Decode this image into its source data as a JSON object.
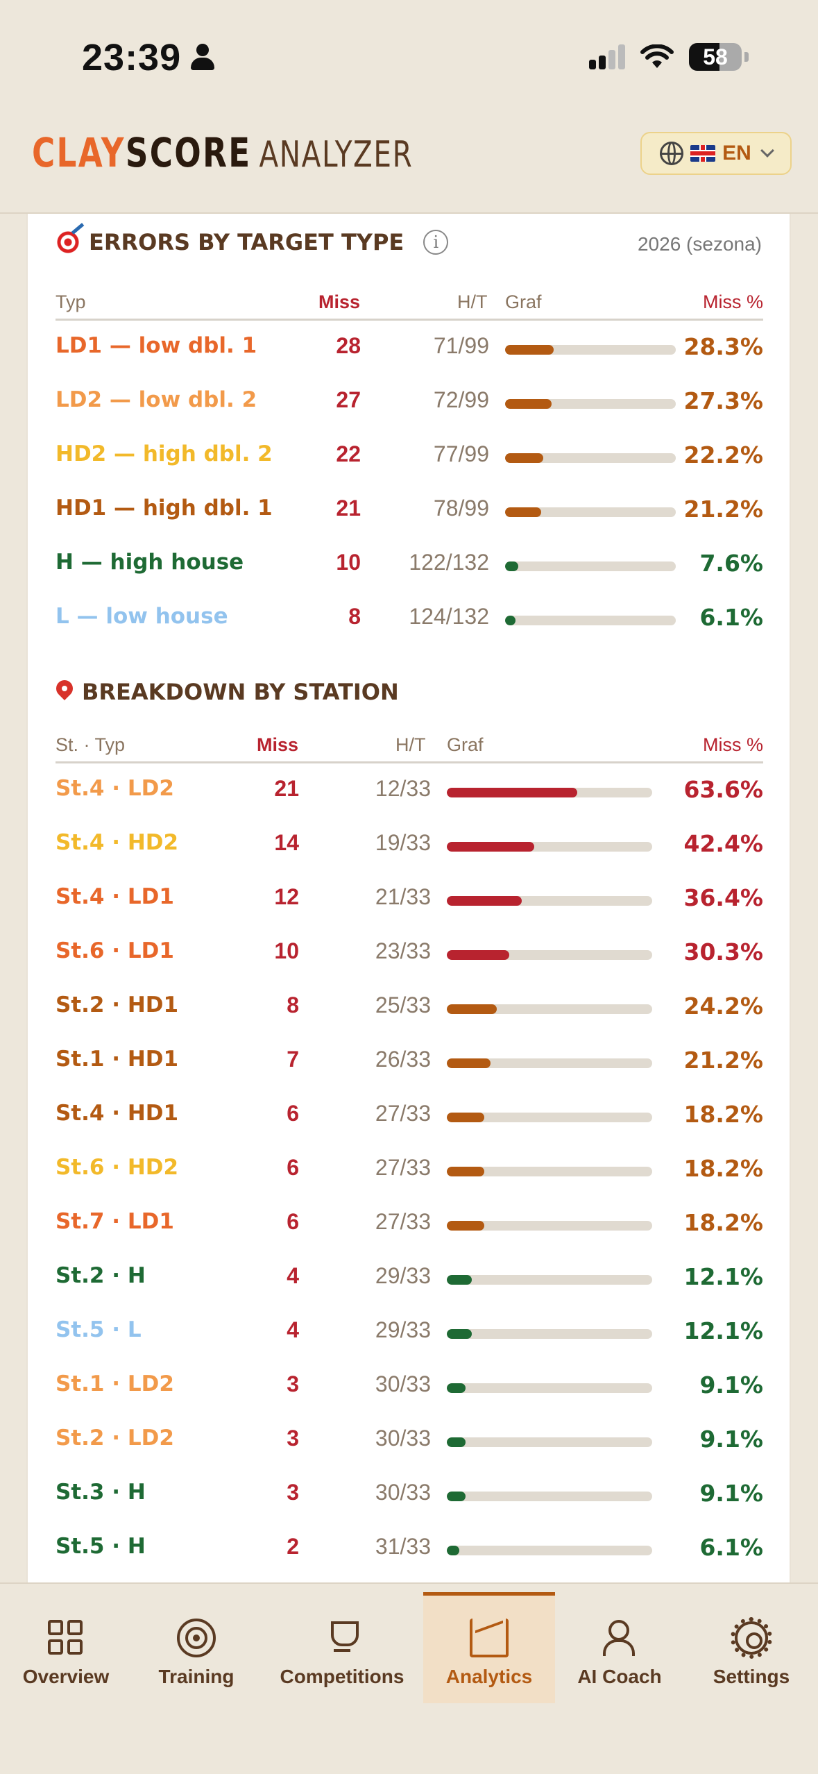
{
  "status": {
    "time": "23:39",
    "battery": "58"
  },
  "header": {
    "logo_clay": "CLAY",
    "logo_score": "SCORE",
    "logo_analyzer": "ANALYZER",
    "lang": "EN"
  },
  "target_section": {
    "title": "ERRORS BY TARGET TYPE",
    "season": "2026 (sezona)",
    "columns": {
      "type": "Typ",
      "miss": "Miss",
      "ht": "H/T",
      "graph": "Graf",
      "miss_pct": "Miss %"
    },
    "rows": [
      {
        "label": "LD1 — low dbl. 1",
        "miss": "28",
        "ht": "71/99",
        "pct": "28.3%",
        "value": 28.3,
        "label_color": "#e8672a",
        "bar_color": "#b35a12",
        "pct_color": "#b35a12"
      },
      {
        "label": "LD2 — low dbl. 2",
        "miss": "27",
        "ht": "72/99",
        "pct": "27.3%",
        "value": 27.3,
        "label_color": "#f29a4a",
        "bar_color": "#b35a12",
        "pct_color": "#b35a12"
      },
      {
        "label": "HD2 — high dbl. 2",
        "miss": "22",
        "ht": "77/99",
        "pct": "22.2%",
        "value": 22.2,
        "label_color": "#f2b92a",
        "bar_color": "#b35a12",
        "pct_color": "#b35a12"
      },
      {
        "label": "HD1 — high dbl. 1",
        "miss": "21",
        "ht": "78/99",
        "pct": "21.2%",
        "value": 21.2,
        "label_color": "#b35a12",
        "bar_color": "#b35a12",
        "pct_color": "#b35a12"
      },
      {
        "label": "H — high house",
        "miss": "10",
        "ht": "122/132",
        "pct": "7.6%",
        "value": 7.6,
        "label_color": "#1e6a34",
        "bar_color": "#1e6a34",
        "pct_color": "#1e6a34"
      },
      {
        "label": "L — low house",
        "miss": "8",
        "ht": "124/132",
        "pct": "6.1%",
        "value": 6.1,
        "label_color": "#92c3ee",
        "bar_color": "#1e6a34",
        "pct_color": "#1e6a34"
      }
    ]
  },
  "station_section": {
    "title": "BREAKDOWN BY STATION",
    "columns": {
      "type": "St. · Typ",
      "miss": "Miss",
      "ht": "H/T",
      "graph": "Graf",
      "miss_pct": "Miss %"
    },
    "rows": [
      {
        "label": "St.4 · LD2",
        "miss": "21",
        "ht": "12/33",
        "pct": "63.6%",
        "value": 63.6,
        "label_color": "#f29a4a",
        "bar_color": "#b8232f",
        "pct_color": "#b8232f"
      },
      {
        "label": "St.4 · HD2",
        "miss": "14",
        "ht": "19/33",
        "pct": "42.4%",
        "value": 42.4,
        "label_color": "#f2b92a",
        "bar_color": "#b8232f",
        "pct_color": "#b8232f"
      },
      {
        "label": "St.4 · LD1",
        "miss": "12",
        "ht": "21/33",
        "pct": "36.4%",
        "value": 36.4,
        "label_color": "#e8672a",
        "bar_color": "#b8232f",
        "pct_color": "#b8232f"
      },
      {
        "label": "St.6 · LD1",
        "miss": "10",
        "ht": "23/33",
        "pct": "30.3%",
        "value": 30.3,
        "label_color": "#e8672a",
        "bar_color": "#b8232f",
        "pct_color": "#b8232f"
      },
      {
        "label": "St.2 · HD1",
        "miss": "8",
        "ht": "25/33",
        "pct": "24.2%",
        "value": 24.2,
        "label_color": "#b35a12",
        "bar_color": "#b35a12",
        "pct_color": "#b35a12"
      },
      {
        "label": "St.1 · HD1",
        "miss": "7",
        "ht": "26/33",
        "pct": "21.2%",
        "value": 21.2,
        "label_color": "#b35a12",
        "bar_color": "#b35a12",
        "pct_color": "#b35a12"
      },
      {
        "label": "St.4 · HD1",
        "miss": "6",
        "ht": "27/33",
        "pct": "18.2%",
        "value": 18.2,
        "label_color": "#b35a12",
        "bar_color": "#b35a12",
        "pct_color": "#b35a12"
      },
      {
        "label": "St.6 · HD2",
        "miss": "6",
        "ht": "27/33",
        "pct": "18.2%",
        "value": 18.2,
        "label_color": "#f2b92a",
        "bar_color": "#b35a12",
        "pct_color": "#b35a12"
      },
      {
        "label": "St.7 · LD1",
        "miss": "6",
        "ht": "27/33",
        "pct": "18.2%",
        "value": 18.2,
        "label_color": "#e8672a",
        "bar_color": "#b35a12",
        "pct_color": "#b35a12"
      },
      {
        "label": "St.2 · H",
        "miss": "4",
        "ht": "29/33",
        "pct": "12.1%",
        "value": 12.1,
        "label_color": "#1e6a34",
        "bar_color": "#1e6a34",
        "pct_color": "#1e6a34"
      },
      {
        "label": "St.5 · L",
        "miss": "4",
        "ht": "29/33",
        "pct": "12.1%",
        "value": 12.1,
        "label_color": "#92c3ee",
        "bar_color": "#1e6a34",
        "pct_color": "#1e6a34"
      },
      {
        "label": "St.1 · LD2",
        "miss": "3",
        "ht": "30/33",
        "pct": "9.1%",
        "value": 9.1,
        "label_color": "#f29a4a",
        "bar_color": "#1e6a34",
        "pct_color": "#1e6a34"
      },
      {
        "label": "St.2 · LD2",
        "miss": "3",
        "ht": "30/33",
        "pct": "9.1%",
        "value": 9.1,
        "label_color": "#f29a4a",
        "bar_color": "#1e6a34",
        "pct_color": "#1e6a34"
      },
      {
        "label": "St.3 · H",
        "miss": "3",
        "ht": "30/33",
        "pct": "9.1%",
        "value": 9.1,
        "label_color": "#1e6a34",
        "bar_color": "#1e6a34",
        "pct_color": "#1e6a34"
      },
      {
        "label": "St.5 · H",
        "miss": "2",
        "ht": "31/33",
        "pct": "6.1%",
        "value": 6.1,
        "label_color": "#1e6a34",
        "bar_color": "#1e6a34",
        "pct_color": "#1e6a34"
      }
    ]
  },
  "nav": {
    "items": [
      {
        "label": "Overview",
        "icon": "grid-icon"
      },
      {
        "label": "Training",
        "icon": "target-icon"
      },
      {
        "label": "Competitions",
        "icon": "trophy-icon"
      },
      {
        "label": "Analytics",
        "icon": "chart-icon",
        "active": true
      },
      {
        "label": "AI Coach",
        "icon": "coach-icon"
      },
      {
        "label": "Settings",
        "icon": "gear-icon"
      }
    ]
  }
}
